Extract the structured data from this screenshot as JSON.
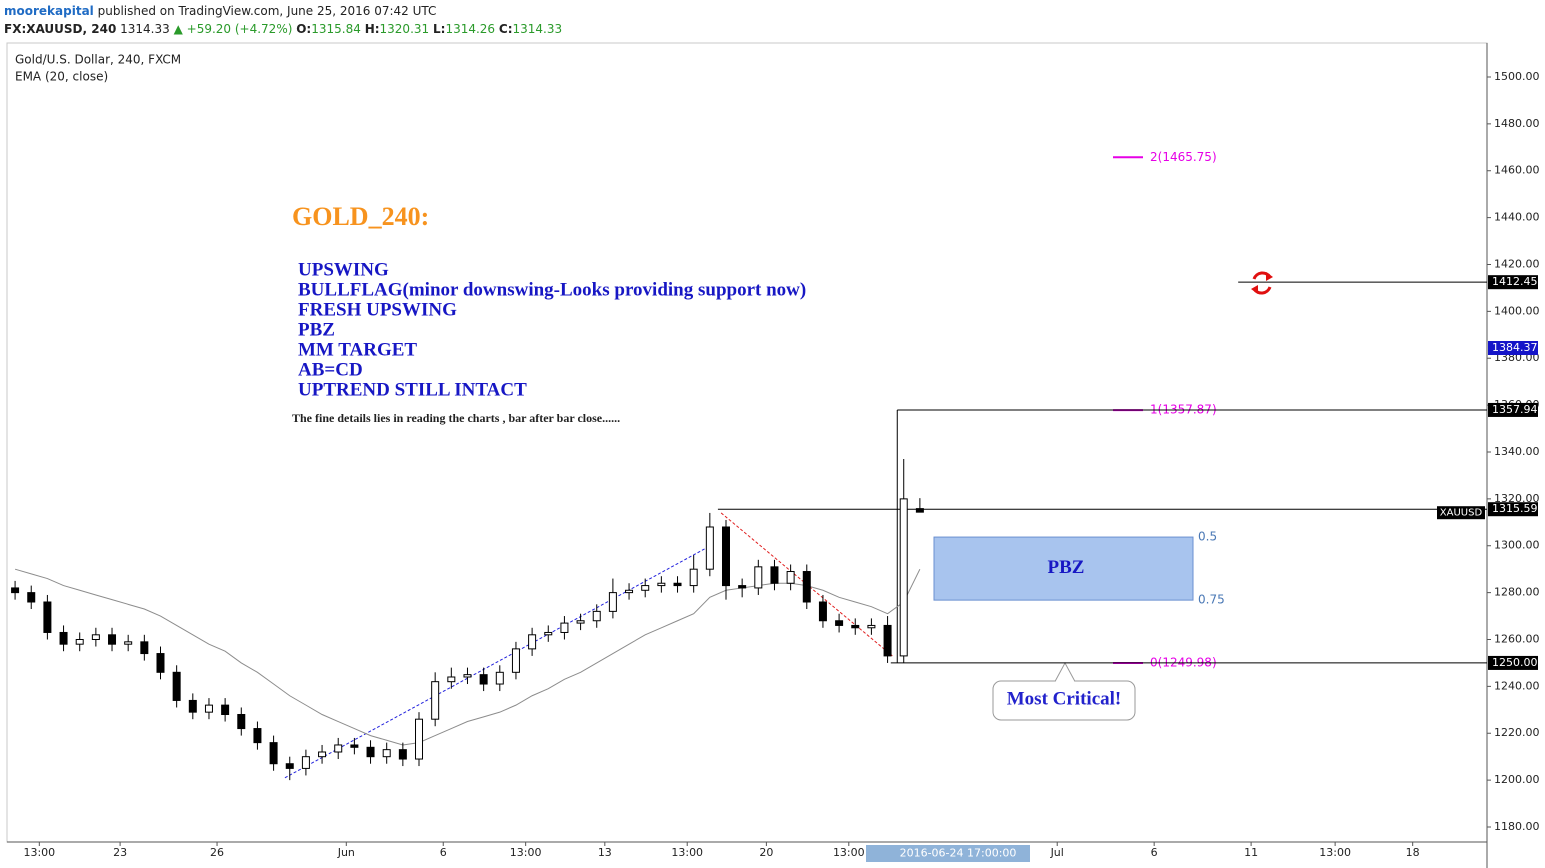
{
  "header": {
    "author": "moorekapital",
    "published": "published on TradingView.com, June 25, 2016 07:42 UTC",
    "symbol": "FX:XAUUSD, 240",
    "last": "1314.33",
    "change": "+59.20 (+4.72%)",
    "ohlc": [
      {
        "k": "O:",
        "v": "1315.84"
      },
      {
        "k": "H:",
        "v": "1320.31"
      },
      {
        "k": "L:",
        "v": "1314.26"
      },
      {
        "k": "C:",
        "v": "1314.33"
      }
    ]
  },
  "chart_data": {
    "type": "candlestick",
    "title": "Gold/U.S. Dollar, 240, FXCM",
    "x": [
      -3.25,
      -2.75,
      -2.25,
      -1.75,
      -1.25,
      -0.75,
      -0.25,
      0.25,
      0.75,
      1.25,
      1.75,
      2.25,
      2.75,
      3.25,
      3.75,
      4.25,
      4.75,
      5.25,
      5.75,
      6.25,
      6.75,
      7.25,
      7.75,
      8.25,
      8.75,
      9.25,
      9.75,
      10.25,
      10.75,
      11.25,
      11.75,
      12.25,
      12.75,
      13.25,
      13.75,
      14.25,
      14.75,
      15.25,
      15.75,
      16.25,
      16.75,
      17.25,
      17.75,
      18.25,
      18.75,
      19.25,
      19.75,
      20.25,
      20.75,
      21.25,
      21.75,
      22.25,
      22.75,
      23.25,
      23.75,
      24.25,
      24.75
    ],
    "open": [
      1282,
      1280,
      1276,
      1263,
      1258,
      1260,
      1262,
      1258,
      1259,
      1254,
      1246,
      1234,
      1229,
      1232,
      1228,
      1222,
      1216,
      1207,
      1205,
      1210,
      1212,
      1215,
      1214,
      1210,
      1213,
      1209,
      1226,
      1242,
      1244,
      1245,
      1241,
      1246,
      1256,
      1262,
      1263,
      1267,
      1268,
      1272,
      1280,
      1281,
      1283,
      1284,
      1283,
      1290,
      1308,
      1283,
      1282,
      1291,
      1284,
      1289,
      1276,
      1268,
      1266,
      1265,
      1266,
      1253,
      1315.84
    ],
    "high": [
      1285,
      1283,
      1279,
      1266,
      1263,
      1265,
      1265,
      1262,
      1262,
      1257,
      1249,
      1237,
      1235,
      1235,
      1231,
      1225,
      1219,
      1210,
      1213,
      1215,
      1218,
      1218,
      1217,
      1216,
      1216,
      1229,
      1246,
      1248,
      1248,
      1248,
      1249,
      1259,
      1265,
      1266,
      1270,
      1271,
      1275,
      1286,
      1284,
      1286,
      1287,
      1287,
      1296,
      1314,
      1311,
      1286,
      1294,
      1294,
      1292,
      1292,
      1279,
      1271,
      1269,
      1269,
      1270,
      1337,
      1320.31
    ],
    "low": [
      1277,
      1273,
      1260,
      1255,
      1255,
      1257,
      1255,
      1255,
      1251,
      1243,
      1231,
      1226,
      1226,
      1225,
      1219,
      1213,
      1204,
      1200,
      1202,
      1207,
      1209,
      1211,
      1207,
      1207,
      1206,
      1206,
      1223,
      1239,
      1241,
      1238,
      1238,
      1243,
      1253,
      1259,
      1260,
      1264,
      1265,
      1269,
      1277,
      1278,
      1280,
      1280,
      1280,
      1287,
      1277,
      1278,
      1279,
      1281,
      1281,
      1273,
      1265,
      1263,
      1262,
      1262,
      1250,
      1250,
      1314.26
    ],
    "close": [
      1280,
      1276,
      1263,
      1258,
      1260,
      1262,
      1258,
      1259,
      1254,
      1246,
      1234,
      1229,
      1232,
      1228,
      1222,
      1216,
      1207,
      1205,
      1210,
      1212,
      1215,
      1214,
      1210,
      1213,
      1209,
      1226,
      1242,
      1244,
      1245,
      1241,
      1246,
      1256,
      1262,
      1263,
      1267,
      1268,
      1272,
      1280,
      1281,
      1283,
      1284,
      1283,
      1290,
      1308,
      1283,
      1282,
      1291,
      1284,
      1289,
      1276,
      1268,
      1266,
      1265,
      1266,
      1253,
      1320,
      1314.33
    ],
    "up_color": "#ffffff",
    "down_color": "#000000",
    "series": [
      {
        "name": "EMA (20, close)",
        "color": "#8c8c8c",
        "values": [
          1290,
          1288,
          1286,
          1283,
          1281,
          1279,
          1277,
          1275,
          1273,
          1270,
          1266,
          1262,
          1258,
          1255,
          1250,
          1246,
          1241,
          1236,
          1232,
          1228,
          1225,
          1222,
          1219,
          1217,
          1215,
          1216,
          1219,
          1222,
          1225,
          1227,
          1229,
          1232,
          1236,
          1239,
          1243,
          1246,
          1250,
          1254,
          1258,
          1262,
          1265,
          1268,
          1271,
          1278,
          1281,
          1282,
          1283,
          1284,
          1284,
          1283,
          1281,
          1278,
          1276,
          1274,
          1271,
          1276,
          1290
        ]
      }
    ],
    "xlim": [
      -3.5,
      42.3
    ],
    "xticks": [
      {
        "value": -2.5,
        "label": "13:00"
      },
      {
        "value": 0,
        "label": "23"
      },
      {
        "value": 3,
        "label": "26"
      },
      {
        "value": 7,
        "label": "Jun"
      },
      {
        "value": 10,
        "label": "6"
      },
      {
        "value": 12.55,
        "label": "13:00"
      },
      {
        "value": 15,
        "label": "13"
      },
      {
        "value": 17.55,
        "label": "13:00"
      },
      {
        "value": 20,
        "label": "20"
      },
      {
        "value": 22.55,
        "label": "13:00"
      },
      {
        "value": 29,
        "label": "Jul"
      },
      {
        "value": 32,
        "label": "6"
      },
      {
        "value": 35,
        "label": "11"
      },
      {
        "value": 37.6,
        "label": "13:00"
      },
      {
        "value": 40,
        "label": "18"
      }
    ],
    "ylim": [
      1173.6,
      1514.5
    ],
    "yticks": [
      {
        "value": 1180,
        "label": "1180.00"
      },
      {
        "value": 1200,
        "label": "1200.00"
      },
      {
        "value": 1220,
        "label": "1220.00"
      },
      {
        "value": 1240,
        "label": "1240.00"
      },
      {
        "value": 1260,
        "label": "1260.00"
      },
      {
        "value": 1280,
        "label": "1280.00"
      },
      {
        "value": 1300,
        "label": "1300.00"
      },
      {
        "value": 1320,
        "label": "1320.00"
      },
      {
        "value": 1340,
        "label": "1340.00"
      },
      {
        "value": 1360,
        "label": "1360.00"
      },
      {
        "value": 1380,
        "label": "1380.00"
      },
      {
        "value": 1400,
        "label": "1400.00"
      },
      {
        "value": 1420,
        "label": "1420.00"
      },
      {
        "value": 1440,
        "label": "1440.00"
      },
      {
        "value": 1460,
        "label": "1460.00"
      },
      {
        "value": 1480,
        "label": "1480.00"
      },
      {
        "value": 1500,
        "label": "1500.00"
      }
    ],
    "grid": false,
    "levels": [
      {
        "value": 1412.45,
        "label": "1412.45",
        "from": 34.6,
        "color": "#000000"
      },
      {
        "value": 1384.37,
        "label": "1384.37",
        "color": "#1414c8"
      },
      {
        "value": 1357.94,
        "label": "1357.94",
        "from": 24.05,
        "color": "#000000"
      },
      {
        "name": "XAUUSD",
        "value": 1315.59,
        "label": "1315.59",
        "from": 18.5,
        "color": "#000000"
      },
      {
        "value": 1250,
        "label": "1250.00",
        "from": 23.85,
        "color": "#000000"
      }
    ],
    "fib": {
      "color": "#e600e6",
      "levels": [
        {
          "label": "2(1465.75)",
          "value": 1465.75
        },
        {
          "label": "1(1357.87)",
          "value": 1357.87
        },
        {
          "label": "0(1249.98)",
          "value": 1249.98
        }
      ]
    },
    "pbz": {
      "label": "PBZ",
      "color": "#a8c4ee",
      "levels": [
        {
          "ratio": 0.5,
          "price": 1303.7
        },
        {
          "ratio": 0.75,
          "price": 1276.8
        }
      ]
    },
    "trendlines": [
      {
        "color": "#2222dd",
        "x": [
          5.1,
          18.4
        ],
        "y": [
          1201,
          1301
        ]
      },
      {
        "color": "#e02020",
        "x": [
          18.6,
          23.9
        ],
        "y": [
          1314,
          1253
        ]
      }
    ],
    "annotations": {
      "title": "GOLD_240:",
      "lines": [
        "UPSWING",
        "BULLFLAG(minor downswing-Looks providing support now)",
        "FRESH UPSWING",
        "PBZ",
        "MM TARGET",
        "AB=CD",
        "UPTREND STILL INTACT"
      ],
      "note": "The fine details lies in reading the charts , bar after bar close......",
      "callout": "Most Critical!"
    },
    "cursor": "2016-06-24 17:00:00"
  }
}
